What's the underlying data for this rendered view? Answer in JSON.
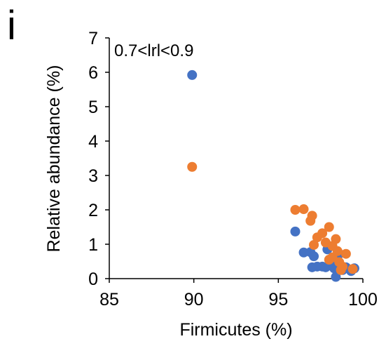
{
  "panel_label": "i",
  "chart_data": {
    "type": "scatter",
    "title": "",
    "annotation": "0.7<lrl<0.9",
    "xlabel": "Firmicutes (%)",
    "ylabel": "Relative abundance (%)",
    "xlim": [
      85,
      100
    ],
    "ylim": [
      0,
      7
    ],
    "x_ticks": [
      85,
      90,
      95,
      100
    ],
    "y_ticks": [
      0,
      1,
      2,
      3,
      4,
      5,
      6,
      7
    ],
    "grid": false,
    "legend": "none",
    "series": [
      {
        "color": "#4472C4",
        "points": [
          [
            89.9,
            5.92
          ],
          [
            96.0,
            1.37
          ],
          [
            96.5,
            0.76
          ],
          [
            96.9,
            0.77
          ],
          [
            97.1,
            0.65
          ],
          [
            97.0,
            0.33
          ],
          [
            97.3,
            0.35
          ],
          [
            97.6,
            0.35
          ],
          [
            97.9,
            0.85
          ],
          [
            97.8,
            0.33
          ],
          [
            98.1,
            0.42
          ],
          [
            98.3,
            0.3
          ],
          [
            98.4,
            0.05
          ],
          [
            98.6,
            0.72
          ],
          [
            98.8,
            0.25
          ],
          [
            99.0,
            0.33
          ],
          [
            99.3,
            0.22
          ],
          [
            99.5,
            0.3
          ]
        ]
      },
      {
        "color": "#ED7D31",
        "points": [
          [
            89.9,
            3.25
          ],
          [
            96.0,
            2.0
          ],
          [
            96.5,
            2.02
          ],
          [
            97.0,
            1.83
          ],
          [
            96.9,
            1.68
          ],
          [
            97.1,
            0.98
          ],
          [
            97.3,
            1.2
          ],
          [
            97.6,
            1.32
          ],
          [
            98.0,
            1.5
          ],
          [
            97.8,
            1.05
          ],
          [
            98.2,
            0.95
          ],
          [
            98.4,
            1.15
          ],
          [
            98.2,
            0.62
          ],
          [
            98.5,
            0.8
          ],
          [
            98.0,
            0.55
          ],
          [
            98.6,
            0.48
          ],
          [
            98.8,
            0.35
          ],
          [
            99.0,
            0.72
          ],
          [
            98.7,
            0.25
          ],
          [
            99.4,
            0.28
          ]
        ]
      }
    ]
  }
}
